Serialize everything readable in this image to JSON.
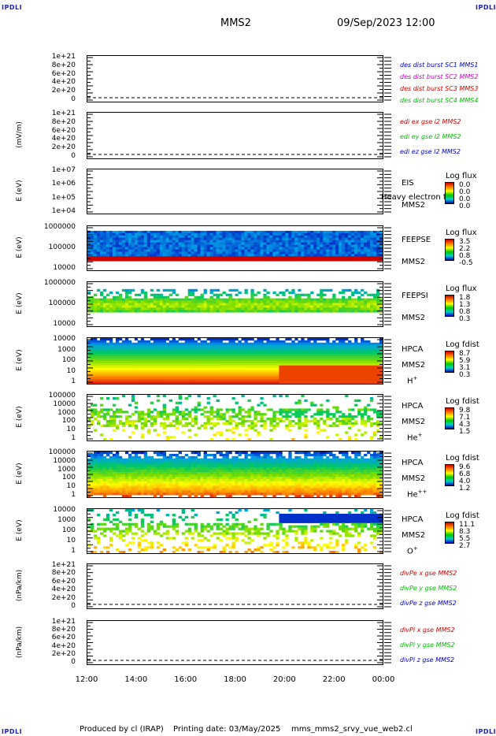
{
  "header": {
    "corner_left_top": "IPDLI",
    "corner_right_top": "IPDLI",
    "corner_left_bottom": "IPDLI",
    "corner_right_bottom": "IPDLI",
    "mission": "MMS2",
    "datetime": "09/Sep/2023 12:00"
  },
  "footer": {
    "produced_by": "Produced by cl (IRAP)",
    "printing_date": "Printing date: 03/May/2025",
    "script": "mms_mms2_srvy_vue_web2.cl"
  },
  "colors": {
    "blue": "#0000cc",
    "magenta": "#cc00cc",
    "red": "#cc0000",
    "green": "#00bb00"
  },
  "chart_data": [
    {
      "type": "line",
      "ylabel": "",
      "yticks": [
        "1e+21",
        "8e+20",
        "6e+20",
        "4e+20",
        "2e+20",
        "0"
      ],
      "series": [
        {
          "name": "des dist burst SC1 MMS1",
          "color": "#0000cc",
          "values": [
            0,
            0
          ]
        },
        {
          "name": "des dist burst SC2 MMS2",
          "color": "#cc00cc",
          "values": [
            0,
            0
          ]
        },
        {
          "name": "des dist burst SC3 MMS3",
          "color": "#cc0000",
          "values": [
            0,
            0
          ]
        },
        {
          "name": "des dist burst SC4 MMS4",
          "color": "#00bb00",
          "values": [
            0,
            0
          ]
        }
      ]
    },
    {
      "type": "line",
      "ylabel": "(mV/m)",
      "yticks": [
        "1e+21",
        "8e+20",
        "6e+20",
        "4e+20",
        "2e+20",
        "0"
      ],
      "series": [
        {
          "name": "edi ex gse l2 MMS2",
          "color": "#cc0000",
          "values": [
            0,
            0
          ]
        },
        {
          "name": "edi ey gse l2 MMS2",
          "color": "#00bb00",
          "values": [
            0,
            0
          ]
        },
        {
          "name": "edi ez gse l2 MMS2",
          "color": "#0000cc",
          "values": [
            0,
            0
          ]
        }
      ]
    },
    {
      "type": "heatmap",
      "ylabel": "E (eV)",
      "yticks": [
        "1e+07",
        "1e+06",
        "1e+05",
        "1e+04"
      ],
      "instrument": [
        "EIS",
        "MMS2"
      ],
      "overlay_text": "Heavy electron tof",
      "colorbar": {
        "title": "Log flux",
        "values": [
          "0.0",
          "0.0",
          "0.0",
          "0.0"
        ]
      }
    },
    {
      "type": "heatmap",
      "ylabel": "E (eV)",
      "yticks": [
        "1000000",
        "100000",
        "10000"
      ],
      "instrument": [
        "FEEPSE",
        "MMS2"
      ],
      "colorbar": {
        "title": "Log flux",
        "values": [
          "3.5",
          "2.2",
          "0.8",
          "-0.5"
        ]
      }
    },
    {
      "type": "heatmap",
      "ylabel": "E (eV)",
      "yticks": [
        "1000000",
        "100000",
        "10000"
      ],
      "instrument": [
        "FEEPSI",
        "MMS2"
      ],
      "colorbar": {
        "title": "Log flux",
        "values": [
          "1.8",
          "1.3",
          "0.8",
          "0.3"
        ]
      }
    },
    {
      "type": "heatmap",
      "ylabel": "E (eV)",
      "yticks": [
        "10000",
        "1000",
        "100",
        "10",
        "1"
      ],
      "instrument": [
        "HPCA",
        "MMS2",
        "H+"
      ],
      "colorbar": {
        "title": "Log fdist",
        "values": [
          "8.7",
          "5.9",
          "3.1",
          "0.3"
        ]
      }
    },
    {
      "type": "heatmap",
      "ylabel": "E (eV)",
      "yticks": [
        "100000",
        "10000",
        "1000",
        "100",
        "10",
        "1"
      ],
      "instrument": [
        "HPCA",
        "MMS2",
        "He+"
      ],
      "colorbar": {
        "title": "Log fdist",
        "values": [
          "9.8",
          "7.1",
          "4.3",
          "1.5"
        ]
      }
    },
    {
      "type": "heatmap",
      "ylabel": "E (eV)",
      "yticks": [
        "100000",
        "10000",
        "1000",
        "100",
        "10",
        "1"
      ],
      "instrument": [
        "HPCA",
        "MMS2",
        "He++"
      ],
      "colorbar": {
        "title": "Log fdist",
        "values": [
          "9.6",
          "6.8",
          "4.0",
          "1.2"
        ]
      }
    },
    {
      "type": "heatmap",
      "ylabel": "E (eV)",
      "yticks": [
        "10000",
        "1000",
        "100",
        "10",
        "1"
      ],
      "instrument": [
        "HPCA",
        "MMS2",
        "O+"
      ],
      "colorbar": {
        "title": "Log fdist",
        "values": [
          "11.1",
          "8.3",
          "5.5",
          "2.7"
        ]
      }
    },
    {
      "type": "line",
      "ylabel": "(nPa/km)",
      "yticks": [
        "1e+21",
        "8e+20",
        "6e+20",
        "4e+20",
        "2e+20",
        "0"
      ],
      "series": [
        {
          "name": "divPe x gse MMS2",
          "color": "#cc0000",
          "values": [
            0,
            0
          ]
        },
        {
          "name": "divPe y gse MMS2",
          "color": "#00bb00",
          "values": [
            0,
            0
          ]
        },
        {
          "name": "divPe z gse MMS2",
          "color": "#0000cc",
          "values": [
            0,
            0
          ]
        }
      ]
    },
    {
      "type": "line",
      "ylabel": "(nPa/km)",
      "yticks": [
        "1e+21",
        "8e+20",
        "6e+20",
        "4e+20",
        "2e+20",
        "0"
      ],
      "series": [
        {
          "name": "divPi x gse MMS2",
          "color": "#cc0000",
          "values": [
            0,
            0
          ]
        },
        {
          "name": "divPi y gse MMS2",
          "color": "#00bb00",
          "values": [
            0,
            0
          ]
        },
        {
          "name": "divPi z gse MMS2",
          "color": "#0000cc",
          "values": [
            0,
            0
          ]
        }
      ]
    }
  ],
  "xaxis": {
    "ticks": [
      "12:00",
      "14:00",
      "16:00",
      "18:00",
      "20:00",
      "22:00",
      "00:00"
    ]
  }
}
